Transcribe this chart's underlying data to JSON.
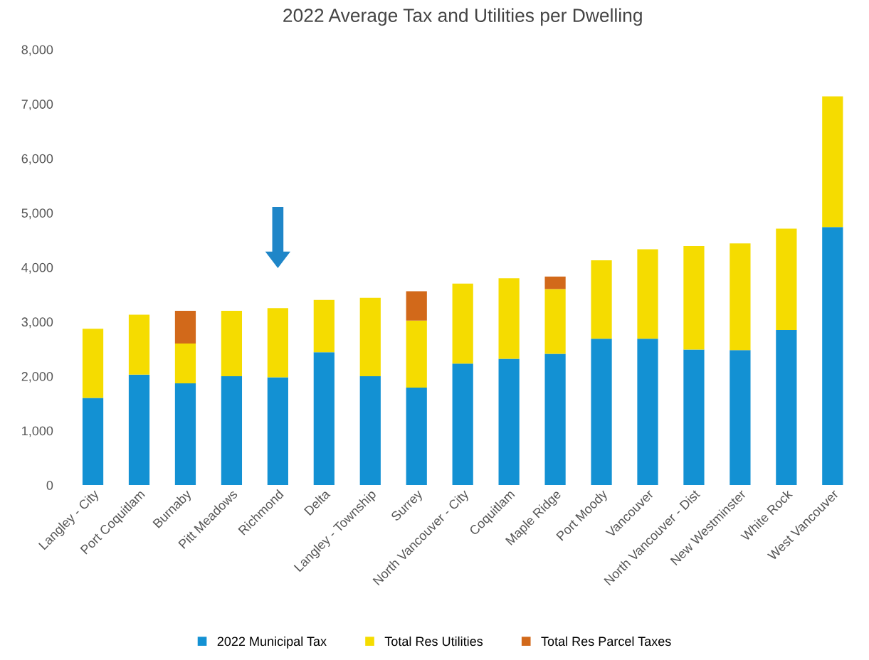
{
  "chart_data": {
    "type": "bar",
    "title": "2022 Average Tax and Utilities per Dwelling",
    "stacked": true,
    "categories": [
      "Langley - City",
      "Port Coquitlam",
      "Burnaby",
      "Pitt Meadows",
      "Richmond",
      "Delta",
      "Langley - Township",
      "Surrey",
      "North Vancouver - City",
      "Coquitlam",
      "Maple Ridge",
      "Port Moody",
      "Vancouver",
      "North Vancouver - Dist",
      "New Westminster",
      "White Rock",
      "West Vancouver"
    ],
    "series": [
      {
        "name": "2022 Municipal Tax",
        "color": "#1391d3",
        "values": [
          1600,
          2030,
          1870,
          2000,
          1980,
          2440,
          2000,
          1790,
          2230,
          2320,
          2410,
          2690,
          2690,
          2490,
          2480,
          2850,
          4740
        ]
      },
      {
        "name": "Total Res Utilities",
        "color": "#f5dc00",
        "values": [
          1270,
          1100,
          730,
          1200,
          1270,
          960,
          1440,
          1230,
          1470,
          1480,
          1190,
          1440,
          1640,
          1900,
          1960,
          1860,
          2400
        ]
      },
      {
        "name": "Total Res Parcel Taxes",
        "color": "#d2691a",
        "values": [
          null,
          null,
          600,
          null,
          null,
          null,
          null,
          540,
          null,
          null,
          230,
          null,
          null,
          null,
          null,
          null,
          null
        ]
      }
    ],
    "ylim": [
      0,
      8000
    ],
    "yticks": [
      {
        "value": 0,
        "label": "0"
      },
      {
        "value": 1000,
        "label": "1,000"
      },
      {
        "value": 2000,
        "label": "2,000"
      },
      {
        "value": 3000,
        "label": "3,000"
      },
      {
        "value": 4000,
        "label": "4,000"
      },
      {
        "value": 5000,
        "label": "5,000"
      },
      {
        "value": 6000,
        "label": "6,000"
      },
      {
        "value": 7000,
        "label": "7,000"
      },
      {
        "value": 8000,
        "label": "8,000"
      }
    ],
    "grid": false,
    "legend": "bottom"
  }
}
